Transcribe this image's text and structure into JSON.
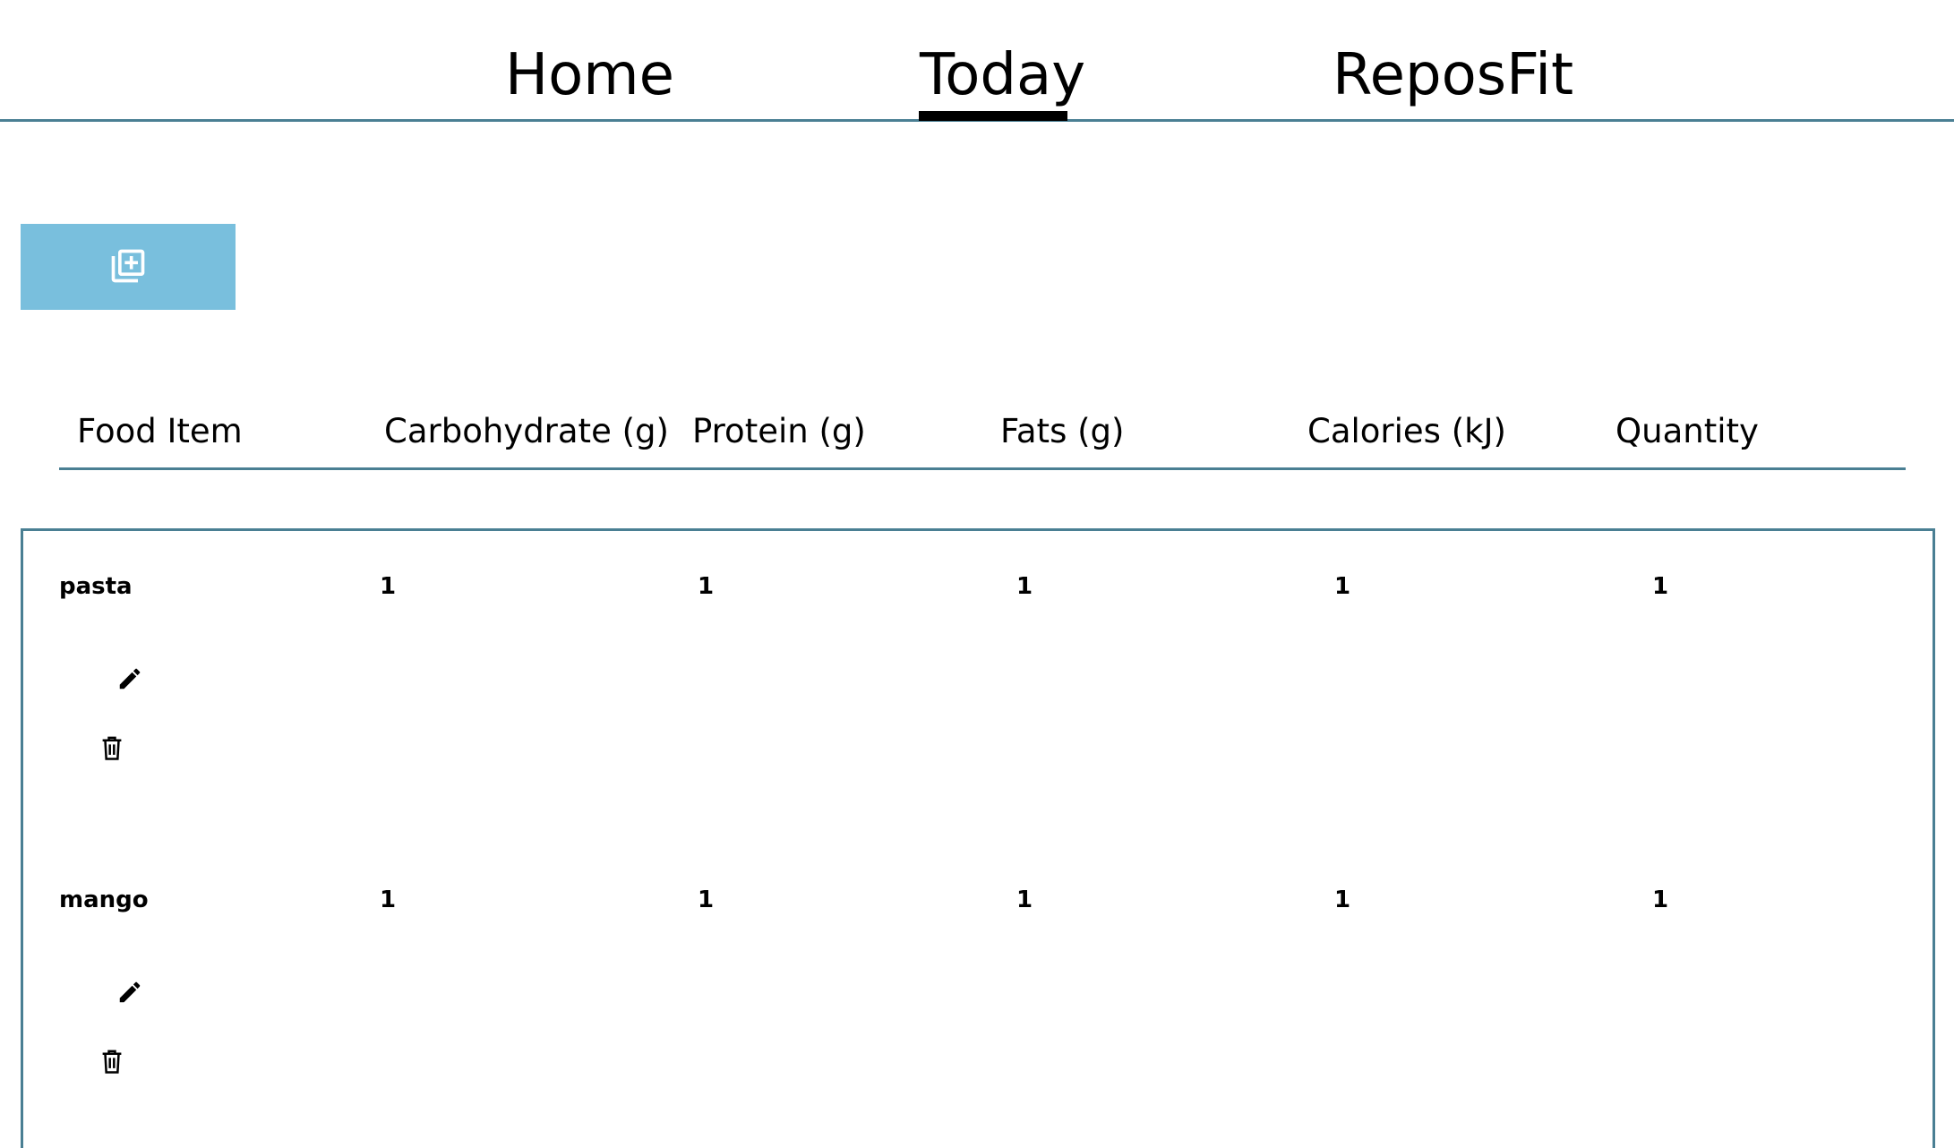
{
  "nav": {
    "tabs": [
      {
        "label": "Home"
      },
      {
        "label": "Today",
        "active": true
      },
      {
        "label": "ReposFit"
      }
    ]
  },
  "add_button": {
    "icon": "add-to-library-icon",
    "color": "#79bfdd"
  },
  "table": {
    "columns": [
      "Food Item",
      "Carbohydrate (g)",
      "Protein (g)",
      "Fats (g)",
      "Calories (kJ)",
      "Quantity"
    ],
    "rows": [
      {
        "food": "pasta",
        "carbohydrate": "1",
        "protein": "1",
        "fats": "1",
        "calories": "1",
        "quantity": "1"
      },
      {
        "food": "mango",
        "carbohydrate": "1",
        "protein": "1",
        "fats": "1",
        "calories": "1",
        "quantity": "1"
      }
    ],
    "row_actions": [
      "edit-icon",
      "delete-icon"
    ]
  },
  "colors": {
    "accent_line": "#4a7f93",
    "button": "#79bfdd",
    "text": "#000000"
  }
}
